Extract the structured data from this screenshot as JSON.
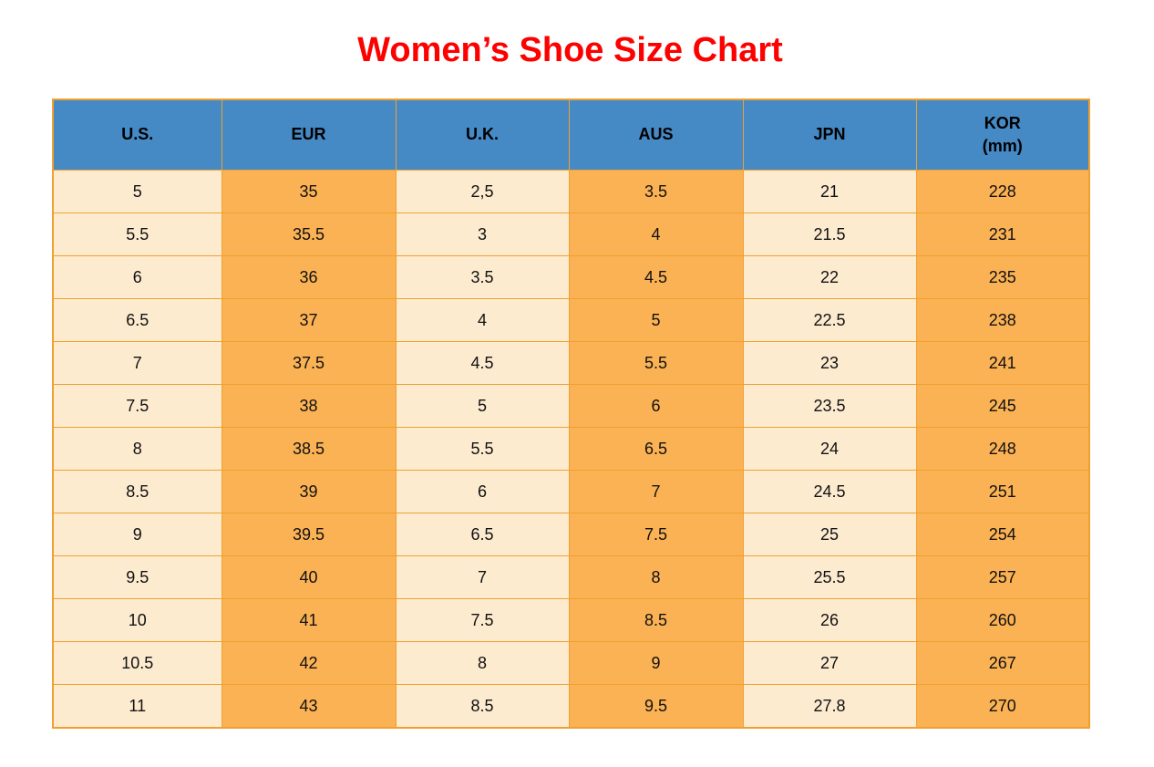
{
  "page": {
    "title": "Women’s Shoe Size Chart"
  },
  "colors": {
    "title-red": "#fe0000",
    "header-blue": "#4589c5",
    "cell-cream": "#fdebd0",
    "cell-orange": "#fbb254",
    "grid-orange": "#f0a030"
  },
  "table": {
    "headers": [
      {
        "key": "us",
        "lines": [
          "U.S."
        ]
      },
      {
        "key": "eur",
        "lines": [
          "EUR"
        ]
      },
      {
        "key": "uk",
        "lines": [
          "U.K."
        ]
      },
      {
        "key": "aus",
        "lines": [
          "AUS"
        ]
      },
      {
        "key": "jpn",
        "lines": [
          "JPN"
        ]
      },
      {
        "key": "kor",
        "lines": [
          "KOR",
          "(mm)"
        ]
      }
    ]
  },
  "chart_data": {
    "type": "table",
    "title": "Women’s Shoe Size Chart",
    "columns": [
      "U.S.",
      "EUR",
      "U.K.",
      "AUS",
      "JPN",
      "KOR (mm)"
    ],
    "rows": [
      [
        "5",
        "35",
        "2,5",
        "3.5",
        "21",
        "228"
      ],
      [
        "5.5",
        "35.5",
        "3",
        "4",
        "21.5",
        "231"
      ],
      [
        "6",
        "36",
        "3.5",
        "4.5",
        "22",
        "235"
      ],
      [
        "6.5",
        "37",
        "4",
        "5",
        "22.5",
        "238"
      ],
      [
        "7",
        "37.5",
        "4.5",
        "5.5",
        "23",
        "241"
      ],
      [
        "7.5",
        "38",
        "5",
        "6",
        "23.5",
        "245"
      ],
      [
        "8",
        "38.5",
        "5.5",
        "6.5",
        "24",
        "248"
      ],
      [
        "8.5",
        "39",
        "6",
        "7",
        "24.5",
        "251"
      ],
      [
        "9",
        "39.5",
        "6.5",
        "7.5",
        "25",
        "254"
      ],
      [
        "9.5",
        "40",
        "7",
        "8",
        "25.5",
        "257"
      ],
      [
        "10",
        "41",
        "7.5",
        "8.5",
        "26",
        "260"
      ],
      [
        "10.5",
        "42",
        "8",
        "9",
        "27",
        "267"
      ],
      [
        "11",
        "43",
        "8.5",
        "9.5",
        "27.8",
        "270"
      ]
    ]
  }
}
